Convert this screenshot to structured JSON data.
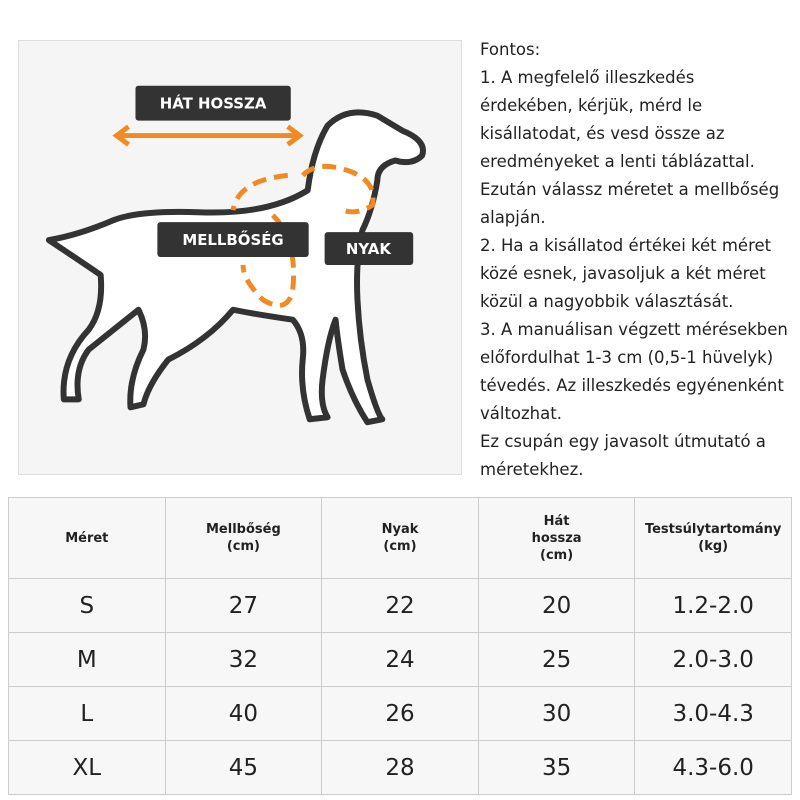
{
  "diagram": {
    "labels": {
      "back_length": "HÁT HOSSZA",
      "chest": "MELLBŐSÉG",
      "neck": "NYAK"
    }
  },
  "notes": {
    "lines": [
      "Fontos:",
      "1. A megfelelő illeszkedés",
      "érdekében, kérjük, mérd le",
      "kisállatodat, és vesd össze az",
      "eredményeket a lenti táblázattal.",
      "Ezután válassz méretet a mellbőség",
      "alapján.",
      "2. Ha a kisállatod értékei két méret",
      "közé esnek, javasoljuk a két méret",
      "közül a nagyobbik választását.",
      "3. A manuálisan végzett mérésekben",
      "előfordulhat 1-3 cm (0,5-1 hüvelyk)",
      "tévedés. Az illeszkedés egyénenként",
      "változhat.",
      "Ez csupán egy javasolt útmutató a",
      "méretekhez."
    ]
  },
  "table": {
    "header": [
      [
        "Méret"
      ],
      [
        "Mellbőség",
        "(cm)"
      ],
      [
        "Nyak",
        "(cm)"
      ],
      [
        "Hát",
        "hossza",
        "(cm)"
      ],
      [
        "Testsúlytartomány",
        "(kg)"
      ]
    ],
    "rows": [
      [
        "S",
        "27",
        "22",
        "20",
        "1.2-2.0"
      ],
      [
        "M",
        "32",
        "24",
        "25",
        "2.0-3.0"
      ],
      [
        "L",
        "40",
        "26",
        "30",
        "3.0-4.3"
      ],
      [
        "XL",
        "45",
        "28",
        "35",
        "4.3-6.0"
      ]
    ]
  }
}
